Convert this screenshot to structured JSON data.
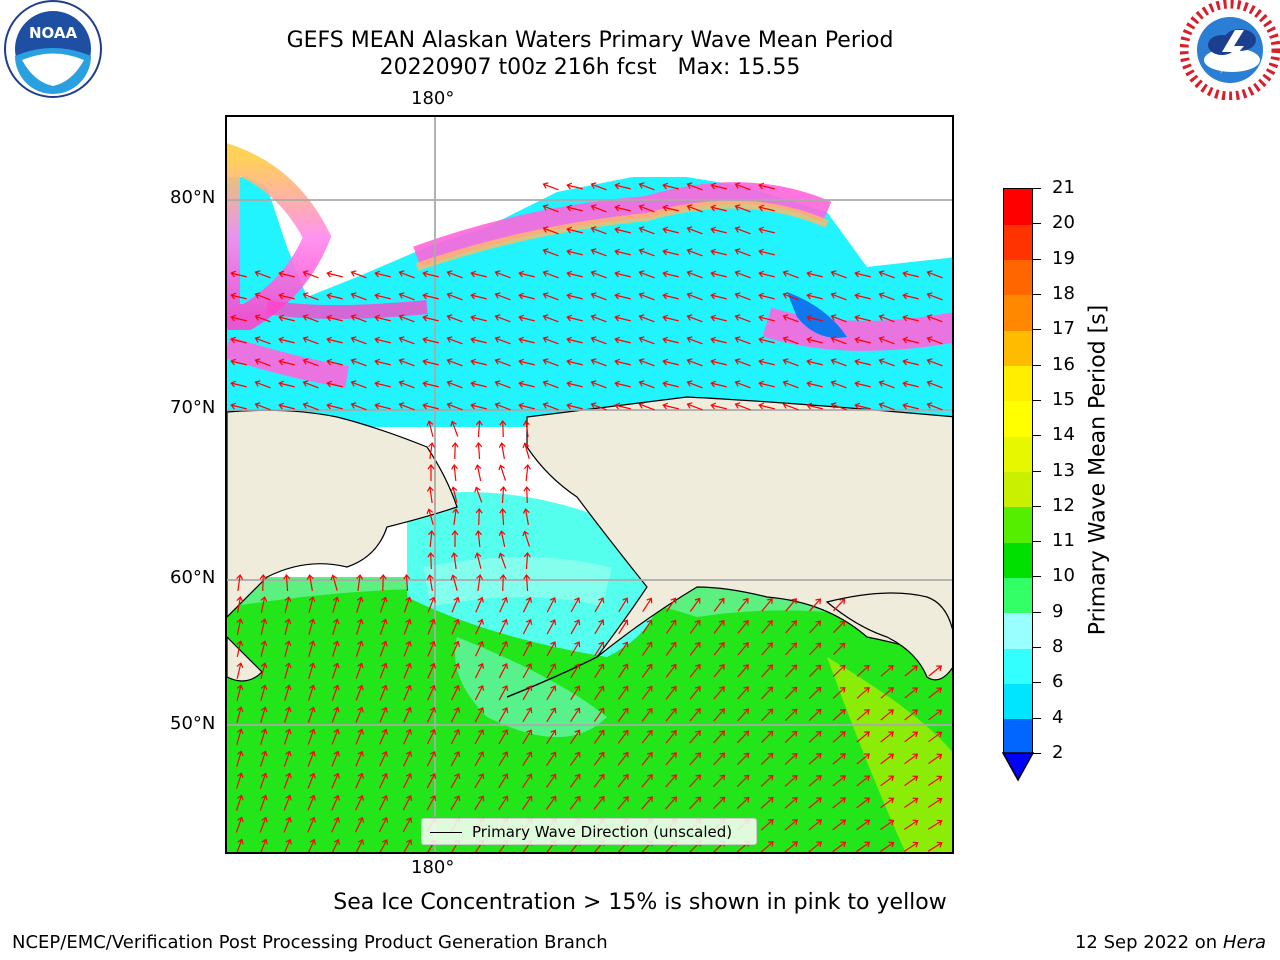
{
  "header": {
    "title_line1": "GEFS MEAN Alaskan Waters Primary Wave Mean Period",
    "title_line2": "20220907 t00z 216h fcst   Max: 15.55"
  },
  "logos": {
    "left": {
      "name": "noaa-logo",
      "text": "NOAA",
      "ring_text": "NATIONAL OCEANIC AND ATMOSPHERIC ADMINISTRATION · U.S. DEPARTMENT OF COMMERCE"
    },
    "right": {
      "name": "nws-logo",
      "ring_text": "NATIONAL WEATHER SERVICE"
    }
  },
  "map": {
    "lon_label_top": "180°",
    "lon_label_bottom": "180°",
    "lat_labels": [
      "80°N",
      "70°N",
      "60°N",
      "50°N"
    ],
    "land_color": "#efecdc",
    "legend": "Primary Wave Direction (unscaled)",
    "arrow_color": "#ff0000"
  },
  "colorbar": {
    "title": "Primary Wave Mean Period [s]",
    "ticks": [
      "2",
      "4",
      "6",
      "8",
      "9",
      "10",
      "11",
      "12",
      "13",
      "14",
      "15",
      "16",
      "17",
      "18",
      "19",
      "20",
      "21"
    ],
    "colors": [
      "#0066ff",
      "#00e5ff",
      "#33ffff",
      "#99ffff",
      "#33ff66",
      "#00e000",
      "#55ee00",
      "#c8f000",
      "#e6f700",
      "#ffff00",
      "#ffee00",
      "#ffbb00",
      "#ff8800",
      "#ff6600",
      "#ff3300",
      "#ff0000"
    ],
    "under_color": "#0000ff"
  },
  "caption": "Sea Ice Concentration > 15% is shown in pink to yellow",
  "footer": {
    "left": "NCEP/EMC/Verification Post Processing Product Generation Branch",
    "right_date": "12 Sep 2022 on",
    "right_host": "Hera"
  }
}
